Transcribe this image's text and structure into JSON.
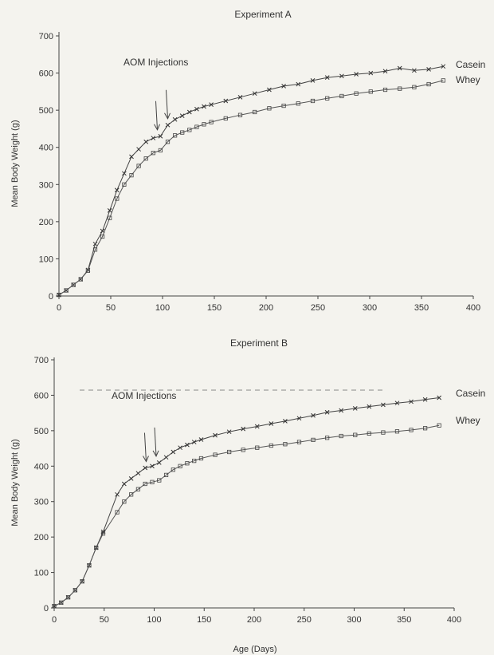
{
  "chart_data": [
    {
      "type": "line",
      "title": "Experiment A",
      "xlabel": "",
      "ylabel": "Mean Body Weight (g)",
      "xlim": [
        0,
        400
      ],
      "ylim": [
        0,
        700
      ],
      "xticks": [
        "0",
        "50",
        "100",
        "150",
        "200",
        "250",
        "300",
        "350",
        "400"
      ],
      "yticks": [
        "0",
        "100",
        "200",
        "300",
        "400",
        "500",
        "600",
        "700"
      ],
      "annotation": {
        "text": "AOM Injections",
        "arrows_at_x": [
          95,
          105
        ]
      },
      "series": [
        {
          "name": "Casein",
          "marker": "x",
          "x": [
            0,
            7,
            14,
            21,
            28,
            35,
            42,
            49,
            56,
            63,
            70,
            77,
            84,
            91,
            98,
            105,
            112,
            119,
            126,
            133,
            140,
            147,
            161,
            175,
            189,
            203,
            217,
            231,
            245,
            259,
            273,
            287,
            301,
            315,
            329,
            343,
            357,
            371
          ],
          "y": [
            3,
            15,
            30,
            45,
            70,
            140,
            175,
            230,
            285,
            330,
            375,
            395,
            415,
            425,
            430,
            460,
            475,
            485,
            495,
            503,
            510,
            515,
            525,
            535,
            545,
            555,
            565,
            570,
            580,
            588,
            592,
            597,
            600,
            605,
            613,
            607,
            610,
            618
          ]
        },
        {
          "name": "Whey",
          "marker": "square",
          "x": [
            0,
            7,
            14,
            21,
            28,
            35,
            42,
            49,
            56,
            63,
            70,
            77,
            84,
            91,
            98,
            105,
            112,
            119,
            126,
            133,
            140,
            147,
            161,
            175,
            189,
            203,
            217,
            231,
            245,
            259,
            273,
            287,
            301,
            315,
            329,
            343,
            357,
            371
          ],
          "y": [
            3,
            15,
            30,
            45,
            68,
            125,
            160,
            210,
            262,
            300,
            325,
            350,
            370,
            385,
            392,
            415,
            432,
            440,
            447,
            455,
            462,
            468,
            478,
            487,
            495,
            505,
            512,
            518,
            525,
            532,
            538,
            545,
            550,
            555,
            558,
            562,
            570,
            580
          ]
        }
      ]
    },
    {
      "type": "line",
      "title": "Experiment B",
      "xlabel": "Age (Days)",
      "ylabel": "Mean Body Weight (g)",
      "xlim": [
        0,
        400
      ],
      "ylim": [
        0,
        700
      ],
      "xticks": [
        "0",
        "50",
        "100",
        "150",
        "200",
        "250",
        "300",
        "350",
        "400"
      ],
      "yticks": [
        "0",
        "100",
        "200",
        "300",
        "400",
        "500",
        "600",
        "700"
      ],
      "annotation": {
        "text": "AOM Injections",
        "arrows_at_x": [
          92,
          102
        ]
      },
      "series": [
        {
          "name": "Casein",
          "marker": "x",
          "x": [
            0,
            7,
            14,
            21,
            28,
            35,
            42,
            49,
            63,
            70,
            77,
            84,
            91,
            98,
            105,
            112,
            119,
            126,
            133,
            140,
            147,
            161,
            175,
            189,
            203,
            217,
            231,
            245,
            259,
            273,
            287,
            301,
            315,
            329,
            343,
            357,
            371,
            385
          ],
          "y": [
            5,
            15,
            30,
            50,
            75,
            120,
            170,
            215,
            320,
            350,
            365,
            380,
            395,
            400,
            410,
            425,
            440,
            452,
            460,
            468,
            475,
            487,
            497,
            505,
            512,
            520,
            527,
            535,
            543,
            552,
            557,
            563,
            568,
            573,
            578,
            582,
            588,
            593
          ]
        },
        {
          "name": "Whey",
          "marker": "square",
          "x": [
            0,
            7,
            14,
            21,
            28,
            35,
            42,
            49,
            63,
            70,
            77,
            84,
            91,
            98,
            105,
            112,
            119,
            126,
            133,
            140,
            147,
            161,
            175,
            189,
            203,
            217,
            231,
            245,
            259,
            273,
            287,
            301,
            315,
            329,
            343,
            357,
            371,
            385
          ],
          "y": [
            5,
            15,
            30,
            50,
            75,
            120,
            170,
            210,
            270,
            300,
            320,
            335,
            350,
            355,
            360,
            375,
            390,
            400,
            408,
            415,
            422,
            432,
            440,
            446,
            452,
            458,
            462,
            468,
            474,
            480,
            485,
            488,
            492,
            495,
            498,
            502,
            507,
            515
          ]
        }
      ]
    }
  ]
}
